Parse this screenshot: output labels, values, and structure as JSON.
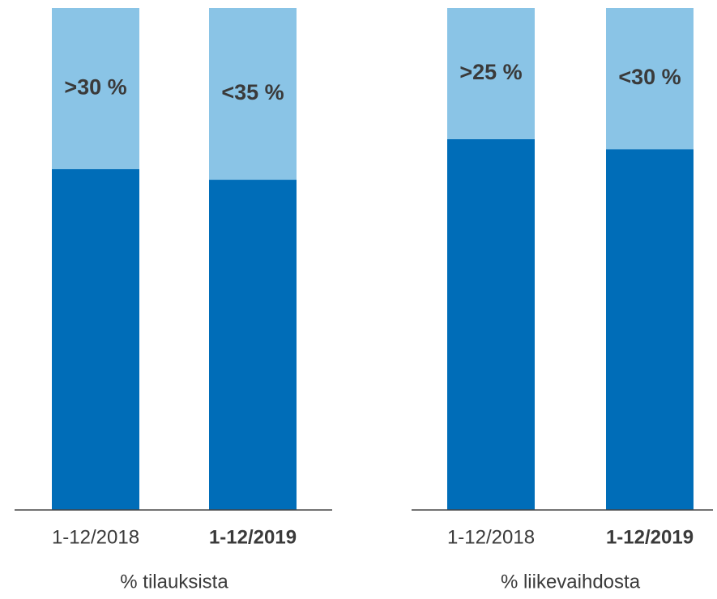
{
  "chart_data": [
    {
      "type": "stacked-bar",
      "xlabel": "% tilauksista",
      "categories": [
        "1-12/2018",
        "1-12/2019"
      ],
      "ylim": [
        0,
        100
      ],
      "series": [
        {
          "color": "#006db8",
          "values": [
            67.9,
            65.8
          ]
        },
        {
          "color": "#8ac4e6",
          "values": [
            32.1,
            34.2
          ],
          "value_labels": [
            ">30 %",
            "<35 %"
          ]
        }
      ]
    },
    {
      "type": "stacked-bar",
      "xlabel": "% liikevaihdosta",
      "categories": [
        "1-12/2018",
        "1-12/2019"
      ],
      "ylim": [
        0,
        100
      ],
      "series": [
        {
          "color": "#006db8",
          "values": [
            73.9,
            71.9
          ]
        },
        {
          "color": "#8ac4e6",
          "values": [
            26.1,
            28.1
          ],
          "value_labels": [
            ">25 %",
            "<30 %"
          ]
        }
      ]
    }
  ]
}
